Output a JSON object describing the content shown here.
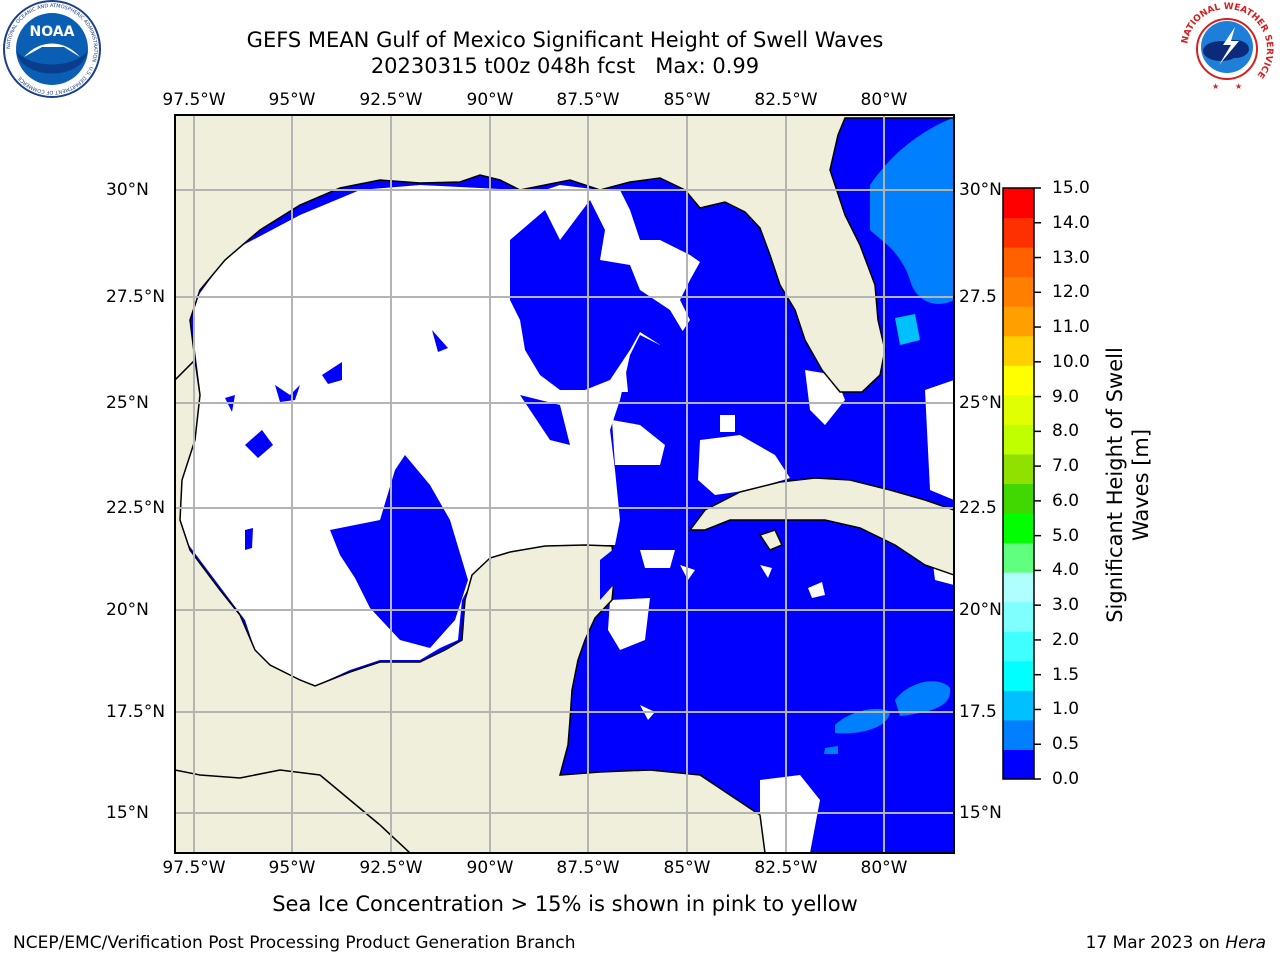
{
  "title": {
    "line1": "GEFS MEAN Gulf of Mexico Significant Height of Swell Waves",
    "line2": "20230315 t00z 048h fcst   Max: 0.99"
  },
  "map": {
    "lon_ticks": [
      "97.5°W",
      "95°W",
      "92.5°W",
      "90°W",
      "87.5°W",
      "85°W",
      "82.5°W",
      "80°W"
    ],
    "lat_ticks_left": [
      "30°N",
      "27.5°N",
      "25°N",
      "22.5°N",
      "20°N",
      "17.5°N",
      "15°N"
    ],
    "lat_ticks_right": [
      "30°N",
      "27.5",
      "25°N",
      "22.5",
      "20°N",
      "17.5",
      "15°N"
    ],
    "colors": {
      "land": "#efefdc",
      "water_low": "#0000ff",
      "water_mid": "#0080ff",
      "water_light": "#00c0ff",
      "no_swell": "#ffffff",
      "grid": "#b4b4b4"
    }
  },
  "colorbar": {
    "label_line1": "Significant Height of Swell",
    "label_line2": "Waves [m]",
    "ticks": [
      "0.0",
      "0.5",
      "1.0",
      "1.5",
      "2.0",
      "3.0",
      "4.0",
      "5.0",
      "6.0",
      "7.0",
      "8.0",
      "9.0",
      "10.0",
      "11.0",
      "12.0",
      "13.0",
      "14.0",
      "15.0"
    ],
    "colors": [
      "#0000ff",
      "#0080ff",
      "#00c0ff",
      "#00ffff",
      "#40ffff",
      "#80ffff",
      "#b0ffff",
      "#60ff80",
      "#00ff00",
      "#40d800",
      "#90e000",
      "#c0ff00",
      "#e0ff00",
      "#ffff00",
      "#ffd000",
      "#ffa000",
      "#ff8000",
      "#ff6000",
      "#ff3000",
      "#ff0000"
    ]
  },
  "caption": "Sea Ice Concentration > 15% is shown in pink to yellow",
  "footer": {
    "left": "NCEP/EMC/Verification Post Processing Product Generation Branch",
    "right_prefix": "17 Mar 2023 on ",
    "right_machine": "Hera"
  },
  "logos": {
    "left_text": "NOAA",
    "left_ring": "NATIONAL OCEANIC AND ATMOSPHERIC ADMINISTRATION · U.S. DEPARTMENT OF COMMERCE",
    "right_ring": "NATIONAL WEATHER SERVICE"
  }
}
